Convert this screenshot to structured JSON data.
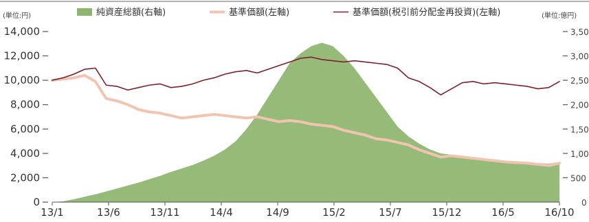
{
  "chart_data": {
    "type": "line",
    "unit_left": "(単位:円)",
    "unit_right": "(単位:億円)",
    "legend": [
      {
        "key": "asset",
        "label": "純資産総額(右軸)",
        "color": "#8db56e",
        "kind": "area"
      },
      {
        "key": "nav",
        "label": "基準価額(左軸)",
        "color": "#f0c4b0",
        "kind": "line"
      },
      {
        "key": "reinv",
        "label": "基準価額(税引前分配金再投資)(左軸)",
        "color": "#7a1f2e",
        "kind": "line"
      }
    ],
    "x_ticks": [
      "13/1",
      "13/6",
      "13/11",
      "14/4",
      "14/9",
      "15/2",
      "15/7",
      "15/12",
      "16/5",
      "16/10"
    ],
    "x_range": [
      "2013-01",
      "2016-12"
    ],
    "y_left": {
      "min": 0,
      "max": 14000,
      "ticks": [
        "0",
        "2,000",
        "4,000",
        "6,000",
        "8,000",
        "10,000",
        "12,000",
        "14,000"
      ]
    },
    "y_right": {
      "min": 0,
      "max": 3500,
      "ticks": [
        "0",
        "500",
        "1,000",
        "1,500",
        "2,000",
        "2,500",
        "3,000",
        "3,500"
      ]
    },
    "months": [
      "2013-01",
      "2013-02",
      "2013-03",
      "2013-04",
      "2013-05",
      "2013-06",
      "2013-07",
      "2013-08",
      "2013-09",
      "2013-10",
      "2013-11",
      "2013-12",
      "2014-01",
      "2014-02",
      "2014-03",
      "2014-04",
      "2014-05",
      "2014-06",
      "2014-07",
      "2014-08",
      "2014-09",
      "2014-10",
      "2014-11",
      "2014-12",
      "2015-01",
      "2015-02",
      "2015-03",
      "2015-04",
      "2015-05",
      "2015-06",
      "2015-07",
      "2015-08",
      "2015-09",
      "2015-10",
      "2015-11",
      "2015-12",
      "2016-01",
      "2016-02",
      "2016-03",
      "2016-04",
      "2016-05",
      "2016-06",
      "2016-07",
      "2016-08",
      "2016-09",
      "2016-10",
      "2016-11",
      "2016-12"
    ],
    "series": [
      {
        "key": "asset",
        "name": "純資産総額(右軸)",
        "axis": "right",
        "values": [
          0,
          15,
          60,
          110,
          160,
          220,
          280,
          340,
          400,
          470,
          540,
          620,
          690,
          760,
          850,
          950,
          1080,
          1250,
          1500,
          1800,
          2150,
          2500,
          2850,
          3050,
          3200,
          3270,
          3200,
          3000,
          2750,
          2450,
          2150,
          1850,
          1550,
          1350,
          1200,
          1080,
          1000,
          970,
          950,
          920,
          880,
          860,
          840,
          830,
          820,
          800,
          790,
          820
        ]
      },
      {
        "key": "nav",
        "name": "基準価額(左軸)",
        "axis": "left",
        "values": [
          10000,
          10100,
          10200,
          10400,
          9900,
          8500,
          8300,
          8000,
          7600,
          7400,
          7300,
          7100,
          6900,
          7000,
          7100,
          7200,
          7100,
          7000,
          6900,
          7000,
          6800,
          6600,
          6700,
          6600,
          6400,
          6300,
          6200,
          5900,
          5700,
          5500,
          5200,
          5100,
          4900,
          4700,
          4300,
          4000,
          3700,
          3800,
          3700,
          3600,
          3500,
          3400,
          3300,
          3250,
          3200,
          3100,
          3000,
          3200
        ]
      },
      {
        "key": "reinv",
        "name": "基準価額(税引前分配金再投資)(左軸)",
        "axis": "left",
        "values": [
          10000,
          10200,
          10500,
          10900,
          11000,
          9600,
          9500,
          9200,
          9400,
          9600,
          9700,
          9400,
          9500,
          9700,
          10000,
          10200,
          10500,
          10700,
          10800,
          10600,
          10900,
          11200,
          11500,
          11800,
          11900,
          11700,
          11600,
          11500,
          11600,
          11500,
          11400,
          11300,
          11000,
          10200,
          9900,
          9400,
          8800,
          9300,
          9800,
          9900,
          9700,
          9800,
          9700,
          9600,
          9500,
          9300,
          9400,
          9900
        ]
      }
    ]
  }
}
